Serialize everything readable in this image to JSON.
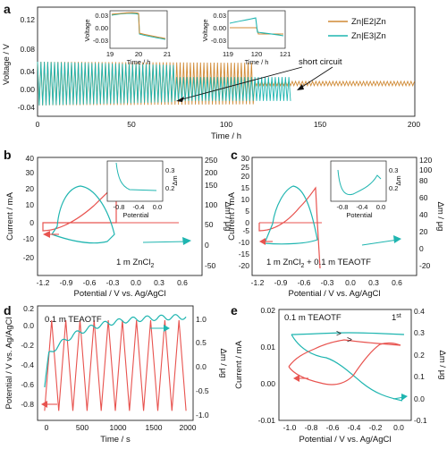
{
  "colors": {
    "orange": "#d08a35",
    "cyan": "#1fb5b0",
    "red": "#e8534f",
    "axis": "#222222"
  },
  "chart_data": [
    {
      "panel": "a",
      "type": "line",
      "xlabel": "Time / h",
      "ylabel": "Voltage / V",
      "xlim": [
        0,
        200
      ],
      "ylim": [
        -0.06,
        0.14
      ],
      "xticks": [
        "0",
        "50",
        "100",
        "150",
        "200"
      ],
      "yticks": [
        "-0.04",
        "0.00",
        "0.04",
        "0.08",
        "0.12"
      ],
      "legend": [
        "Zn|E2|Zn",
        "Zn|E3|Zn"
      ],
      "annotation": "short circuit",
      "series": [
        {
          "name": "Zn|E2|Zn",
          "color": "orange",
          "x": [
            0,
            200
          ],
          "envelope_amp": [
            0.04,
            0.035
          ],
          "short_circuit_at": 115
        },
        {
          "name": "Zn|E3|Zn",
          "color": "cyan",
          "x": [
            0,
            135
          ],
          "envelope_amp": [
            0.04,
            0.025
          ],
          "short_circuit_at": 72
        }
      ],
      "insets": [
        {
          "xlabel": "Time / h",
          "ylabel": "Voltage",
          "xlim": [
            19,
            21
          ],
          "xticks": [
            "19",
            "20",
            "21"
          ],
          "yticks": [
            "0.03",
            "0.00",
            "-0.03"
          ]
        },
        {
          "xlabel": "Time / h",
          "ylabel": "Voltage",
          "xlim": [
            119,
            121
          ],
          "xticks": [
            "119",
            "120",
            "121"
          ],
          "yticks": [
            "0.03",
            "0.00",
            "-0.03"
          ]
        }
      ]
    },
    {
      "panel": "b",
      "type": "line",
      "xlabel": "Potential / V vs. Ag/AgCl",
      "ylabel": "Current / mA",
      "y2label": "Δm / μg",
      "xlim": [
        -1.3,
        0.75
      ],
      "ylim": [
        -20,
        40
      ],
      "y2lim": [
        -50,
        250
      ],
      "xticks": [
        "-1.2",
        "-0.9",
        "-0.6",
        "-0.3",
        "0.0",
        "0.3",
        "0.6"
      ],
      "yticks": [
        "-20",
        "-10",
        "0",
        "10",
        "20",
        "30",
        "40"
      ],
      "y2ticks": [
        "-50",
        "0",
        "50",
        "100",
        "150",
        "200",
        "250"
      ],
      "annotation": "1 m ZnCl",
      "annotation_sub": "2",
      "inset": {
        "xlabel": "Potential",
        "ylabel": "Δm",
        "xticks": [
          "-0.8",
          "-0.4",
          "0.0"
        ],
        "yticks": [
          "0.3",
          "0.2"
        ]
      }
    },
    {
      "panel": "c",
      "type": "line",
      "xlabel": "Potential / V vs. Ag/AgCl",
      "ylabel": "Current / mA",
      "y2label": "Δm / μg",
      "xlim": [
        -1.3,
        0.75
      ],
      "ylim": [
        -20,
        30
      ],
      "y2lim": [
        -20,
        120
      ],
      "xticks": [
        "-1.2",
        "-0.9",
        "-0.6",
        "-0.3",
        "0.0",
        "0.3",
        "0.6"
      ],
      "yticks": [
        "-20",
        "-15",
        "-10",
        "-5",
        "0",
        "5",
        "10",
        "15",
        "20",
        "25",
        "30"
      ],
      "y2ticks": [
        "-20",
        "0",
        "20",
        "40",
        "60",
        "80",
        "100",
        "120"
      ],
      "annotation_a": "1 m ZnCl",
      "annotation_sub": "2",
      "annotation_b": " + 0.1 m TEAOTF",
      "inset": {
        "xlabel": "Potential",
        "ylabel": "Δm",
        "xticks": [
          "-0.8",
          "-0.4",
          "0.0"
        ],
        "yticks": [
          "0.3",
          "0.2"
        ]
      }
    },
    {
      "panel": "d",
      "type": "line",
      "xlabel": "Time / s",
      "ylabel": "Potential / V vs. Ag/AgCl",
      "y2label": "Δm / μg",
      "xlim": [
        -100,
        2100
      ],
      "ylim": [
        -1.0,
        0.2
      ],
      "y2lim": [
        -1.0,
        1.25
      ],
      "xticks": [
        "0",
        "500",
        "1000",
        "1500",
        "2000"
      ],
      "yticks": [
        "-0.8",
        "-0.6",
        "-0.4",
        "-0.2",
        "0.0",
        "0.2"
      ],
      "y2ticks": [
        "-1.0",
        "-0.5",
        "0.0",
        "0.5",
        "1.0"
      ],
      "annotation": "0.1 m TEAOTF"
    },
    {
      "panel": "e",
      "type": "line",
      "xlabel": "Potential / V vs. Ag/AgCl",
      "ylabel": "Current / mA",
      "y2label": "Δm / μg",
      "xlim": [
        -1.1,
        0.1
      ],
      "ylim": [
        -0.01,
        0.02
      ],
      "y2lim": [
        -0.1,
        0.4
      ],
      "xticks": [
        "-1.0",
        "-0.8",
        "-0.6",
        "-0.4",
        "-0.2",
        "0.0"
      ],
      "yticks": [
        "-0.01",
        "0.00",
        "0.01",
        "0.02"
      ],
      "y2ticks": [
        "-0.1",
        "0.0",
        "0.1",
        "0.2",
        "0.3",
        "0.4"
      ],
      "annotation": "0.1 m TEAOTF",
      "cycle_label": "1",
      "cycle_sup": "st"
    }
  ]
}
